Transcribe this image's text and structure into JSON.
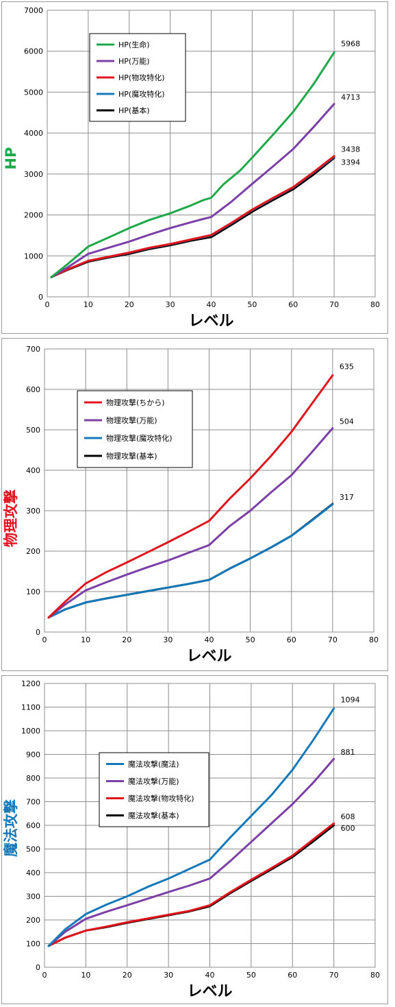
{
  "chart_data": [
    {
      "type": "line",
      "ylabel": "HP",
      "ylabel_color": "#1fa84a",
      "xlabel": "レベル",
      "xlim": [
        0,
        80
      ],
      "ylim": [
        0,
        7000
      ],
      "xticks": [
        0,
        10,
        20,
        30,
        40,
        50,
        60,
        70,
        80
      ],
      "yticks": [
        0,
        1000,
        2000,
        3000,
        4000,
        5000,
        6000,
        7000
      ],
      "grid": true,
      "legend_position": "top-left",
      "series": [
        {
          "name": "HP(生命)",
          "color": "#1fa84a",
          "end_label": "5968",
          "points": [
            [
              1,
              480
            ],
            [
              5,
              800
            ],
            [
              10,
              1230
            ],
            [
              15,
              1450
            ],
            [
              20,
              1680
            ],
            [
              25,
              1880
            ],
            [
              30,
              2040
            ],
            [
              35,
              2230
            ],
            [
              38,
              2360
            ],
            [
              40,
              2420
            ],
            [
              43,
              2750
            ],
            [
              47,
              3080
            ],
            [
              50,
              3400
            ],
            [
              55,
              3950
            ],
            [
              60,
              4520
            ],
            [
              65,
              5200
            ],
            [
              70,
              5968
            ]
          ]
        },
        {
          "name": "HP(万能)",
          "color": "#7b3fa6",
          "end_label": "4713",
          "points": [
            [
              1,
              480
            ],
            [
              5,
              720
            ],
            [
              10,
              1050
            ],
            [
              15,
              1200
            ],
            [
              20,
              1350
            ],
            [
              25,
              1520
            ],
            [
              30,
              1680
            ],
            [
              35,
              1820
            ],
            [
              38,
              1900
            ],
            [
              40,
              1950
            ],
            [
              45,
              2330
            ],
            [
              50,
              2760
            ],
            [
              55,
              3180
            ],
            [
              60,
              3610
            ],
            [
              65,
              4150
            ],
            [
              70,
              4713
            ]
          ]
        },
        {
          "name": "HP(物攻特化)",
          "color": "#e0141c",
          "end_label": "3438",
          "points": [
            [
              1,
              480
            ],
            [
              5,
              670
            ],
            [
              10,
              880
            ],
            [
              15,
              980
            ],
            [
              20,
              1080
            ],
            [
              25,
              1200
            ],
            [
              30,
              1290
            ],
            [
              35,
              1400
            ],
            [
              40,
              1510
            ],
            [
              45,
              1810
            ],
            [
              50,
              2130
            ],
            [
              55,
              2410
            ],
            [
              60,
              2680
            ],
            [
              65,
              3050
            ],
            [
              70,
              3438
            ]
          ]
        },
        {
          "name": "HP(魔攻特化)",
          "color": "#1478b9",
          "end_label": "",
          "points": [
            [
              1,
              480
            ],
            [
              5,
              670
            ],
            [
              10,
              880
            ],
            [
              15,
              975
            ],
            [
              20,
              1075
            ],
            [
              25,
              1195
            ],
            [
              30,
              1285
            ],
            [
              35,
              1395
            ],
            [
              40,
              1500
            ],
            [
              45,
              1800
            ],
            [
              50,
              2120
            ],
            [
              55,
              2400
            ],
            [
              60,
              2670
            ],
            [
              65,
              3040
            ],
            [
              70,
              3420
            ]
          ]
        },
        {
          "name": "HP(基本)",
          "color": "#000000",
          "end_label": "3394",
          "points": [
            [
              1,
              480
            ],
            [
              5,
              660
            ],
            [
              10,
              860
            ],
            [
              15,
              960
            ],
            [
              20,
              1050
            ],
            [
              25,
              1170
            ],
            [
              30,
              1260
            ],
            [
              35,
              1370
            ],
            [
              40,
              1460
            ],
            [
              45,
              1760
            ],
            [
              50,
              2080
            ],
            [
              55,
              2360
            ],
            [
              60,
              2630
            ],
            [
              65,
              2990
            ],
            [
              70,
              3394
            ]
          ]
        }
      ]
    },
    {
      "type": "line",
      "ylabel": "物理攻撃",
      "ylabel_color": "#e0141c",
      "xlabel": "レベル",
      "xlim": [
        0,
        80
      ],
      "ylim": [
        0,
        700
      ],
      "xticks": [
        0,
        10,
        20,
        30,
        40,
        50,
        60,
        70,
        80
      ],
      "yticks": [
        0,
        100,
        200,
        300,
        400,
        500,
        600,
        700
      ],
      "grid": true,
      "legend_position": "left",
      "series": [
        {
          "name": "物理攻撃(ちから)",
          "color": "#e0141c",
          "end_label": "635",
          "points": [
            [
              1,
              36
            ],
            [
              5,
              75
            ],
            [
              10,
              120
            ],
            [
              15,
              148
            ],
            [
              20,
              172
            ],
            [
              25,
              197
            ],
            [
              30,
              222
            ],
            [
              35,
              248
            ],
            [
              40,
              275
            ],
            [
              45,
              330
            ],
            [
              50,
              380
            ],
            [
              55,
              435
            ],
            [
              60,
              495
            ],
            [
              65,
              565
            ],
            [
              70,
              635
            ]
          ]
        },
        {
          "name": "物理攻撃(万能)",
          "color": "#7b3fa6",
          "end_label": "504",
          "points": [
            [
              1,
              36
            ],
            [
              5,
              68
            ],
            [
              10,
              103
            ],
            [
              15,
              123
            ],
            [
              20,
              142
            ],
            [
              25,
              160
            ],
            [
              30,
              177
            ],
            [
              35,
              196
            ],
            [
              40,
              215
            ],
            [
              45,
              262
            ],
            [
              50,
              300
            ],
            [
              55,
              345
            ],
            [
              60,
              388
            ],
            [
              65,
              445
            ],
            [
              70,
              504
            ]
          ]
        },
        {
          "name": "物理攻撃(魔攻特化)",
          "color": "#1478b9",
          "end_label": "",
          "points": [
            [
              1,
              36
            ],
            [
              5,
              56
            ],
            [
              10,
              73
            ],
            [
              15,
              83
            ],
            [
              20,
              92
            ],
            [
              25,
              101
            ],
            [
              30,
              110
            ],
            [
              35,
              119
            ],
            [
              40,
              129
            ],
            [
              45,
              157
            ],
            [
              50,
              182
            ],
            [
              55,
              209
            ],
            [
              60,
              238
            ],
            [
              65,
              276
            ],
            [
              70,
              316
            ]
          ]
        },
        {
          "name": "物理攻撃(基本)",
          "color": "#000000",
          "end_label": "317",
          "points": [
            [
              1,
              36
            ],
            [
              5,
              56
            ],
            [
              10,
              73
            ],
            [
              15,
              83
            ],
            [
              20,
              92
            ],
            [
              25,
              101
            ],
            [
              30,
              110
            ],
            [
              35,
              119
            ],
            [
              40,
              129
            ],
            [
              45,
              157
            ],
            [
              50,
              182
            ],
            [
              55,
              209
            ],
            [
              60,
              238
            ],
            [
              65,
              277
            ],
            [
              70,
              317
            ]
          ]
        }
      ]
    },
    {
      "type": "line",
      "ylabel": "魔法攻撃",
      "ylabel_color": "#1478b9",
      "xlabel": "レベル",
      "xlim": [
        0,
        80
      ],
      "ylim": [
        0,
        1200
      ],
      "xticks": [
        0,
        10,
        20,
        30,
        40,
        50,
        60,
        70,
        80
      ],
      "yticks": [
        0,
        100,
        200,
        300,
        400,
        500,
        600,
        700,
        800,
        900,
        1000,
        1100,
        1200
      ],
      "grid": true,
      "legend_position": "center-left",
      "series": [
        {
          "name": "魔法攻撃(魔法)",
          "color": "#1478b9",
          "end_label": "1094",
          "points": [
            [
              1,
              90
            ],
            [
              5,
              160
            ],
            [
              10,
              225
            ],
            [
              15,
              265
            ],
            [
              20,
              300
            ],
            [
              25,
              340
            ],
            [
              30,
              375
            ],
            [
              35,
              415
            ],
            [
              40,
              455
            ],
            [
              45,
              550
            ],
            [
              50,
              640
            ],
            [
              55,
              730
            ],
            [
              60,
              835
            ],
            [
              65,
              960
            ],
            [
              70,
              1094
            ]
          ]
        },
        {
          "name": "魔法攻撃(万能)",
          "color": "#7b3fa6",
          "end_label": "881",
          "points": [
            [
              1,
              90
            ],
            [
              5,
              150
            ],
            [
              10,
              205
            ],
            [
              15,
              235
            ],
            [
              20,
              262
            ],
            [
              25,
              290
            ],
            [
              30,
              318
            ],
            [
              35,
              345
            ],
            [
              40,
              375
            ],
            [
              45,
              450
            ],
            [
              50,
              530
            ],
            [
              55,
              610
            ],
            [
              60,
              690
            ],
            [
              65,
              780
            ],
            [
              70,
              881
            ]
          ]
        },
        {
          "name": "魔法攻撃(物攻特化)",
          "color": "#e0141c",
          "end_label": "608",
          "points": [
            [
              1,
              90
            ],
            [
              5,
              125
            ],
            [
              10,
              155
            ],
            [
              15,
              172
            ],
            [
              20,
              190
            ],
            [
              25,
              206
            ],
            [
              30,
              222
            ],
            [
              35,
              238
            ],
            [
              40,
              262
            ],
            [
              45,
              318
            ],
            [
              50,
              370
            ],
            [
              55,
              420
            ],
            [
              60,
              472
            ],
            [
              65,
              540
            ],
            [
              70,
              608
            ]
          ]
        },
        {
          "name": "魔法攻撃(基本)",
          "color": "#000000",
          "end_label": "600",
          "points": [
            [
              1,
              90
            ],
            [
              5,
              125
            ],
            [
              10,
              155
            ],
            [
              15,
              170
            ],
            [
              20,
              188
            ],
            [
              25,
              204
            ],
            [
              30,
              220
            ],
            [
              35,
              236
            ],
            [
              40,
              258
            ],
            [
              45,
              314
            ],
            [
              50,
              365
            ],
            [
              55,
              415
            ],
            [
              60,
              466
            ],
            [
              65,
              532
            ],
            [
              70,
              600
            ]
          ]
        }
      ]
    }
  ]
}
